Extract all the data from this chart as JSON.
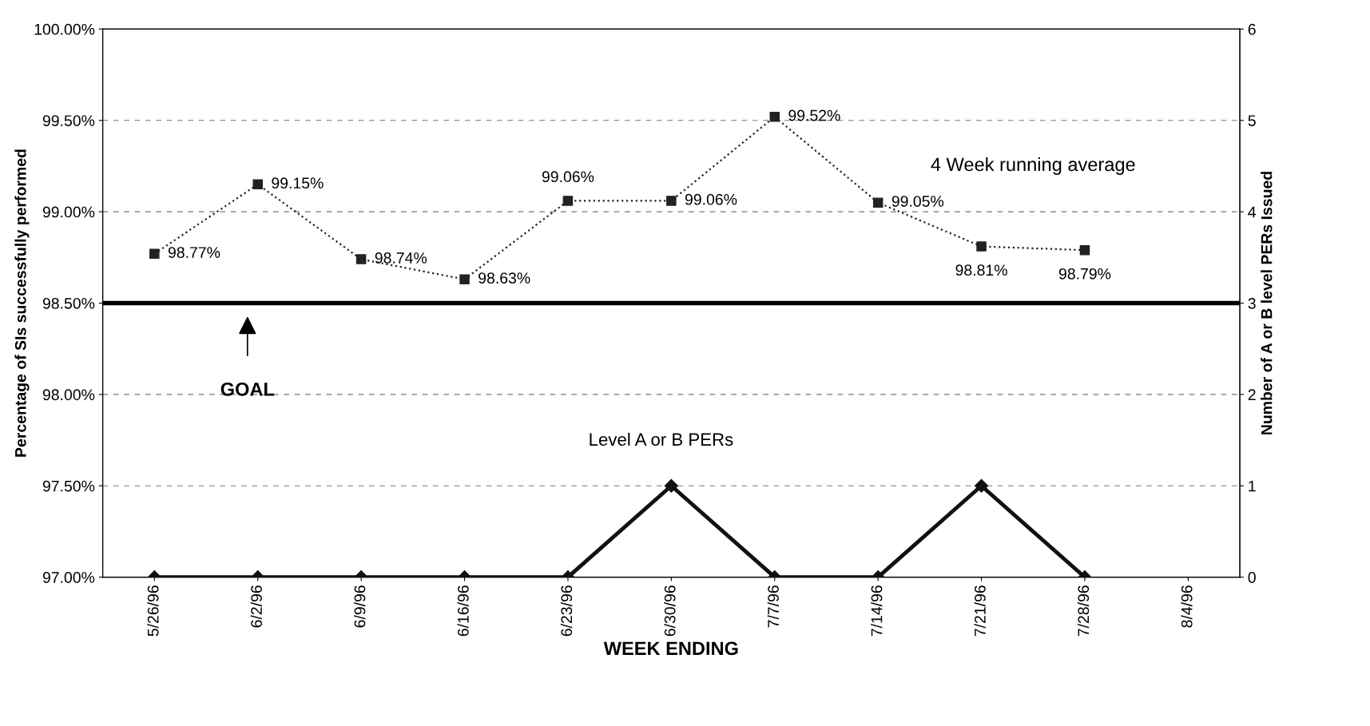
{
  "chart_data": {
    "type": "line",
    "xlabel": "WEEK ENDING",
    "ylabel": "Percentage of SIs successfully performed",
    "y2label": "Number of A or B level PERs Issued",
    "categories": [
      "5/26/96",
      "6/2/96",
      "6/9/96",
      "6/16/96",
      "6/23/96",
      "6/30/96",
      "7/7/96",
      "7/14/96",
      "7/21/96",
      "7/28/96",
      "8/4/96"
    ],
    "series": [
      {
        "name": "4 Week running average",
        "color": "#222222",
        "values": [
          98.77,
          99.15,
          98.74,
          98.63,
          99.06,
          99.06,
          99.52,
          99.05,
          98.81,
          98.79,
          null
        ],
        "value_labels": [
          "98.77%",
          "99.15%",
          "98.74%",
          "98.63%",
          "99.06%",
          "99.06%",
          "99.52%",
          "99.05%",
          "98.81%",
          "98.79%",
          null
        ],
        "marker": "square",
        "line_style": "dotted"
      },
      {
        "name": "Level A or B PERs",
        "color": "#111111",
        "axis": "y2",
        "values": [
          0,
          0,
          0,
          0,
          0,
          1,
          0,
          0,
          1,
          0,
          null
        ],
        "marker": "diamond",
        "line_style": "solid"
      }
    ],
    "ylim": [
      97,
      100
    ],
    "yticks": [
      {
        "value": 97,
        "label": "97.00%"
      },
      {
        "value": 97.5,
        "label": "97.50%"
      },
      {
        "value": 98,
        "label": "98.00%"
      },
      {
        "value": 98.5,
        "label": "98.50%"
      },
      {
        "value": 99,
        "label": "99.00%"
      },
      {
        "value": 99.5,
        "label": "99.50%"
      },
      {
        "value": 100,
        "label": "100.00%"
      }
    ],
    "y2lim": [
      0,
      6
    ],
    "y2ticks": [
      0,
      1,
      2,
      3,
      4,
      5,
      6
    ],
    "ref_lines": [
      {
        "axis": "y",
        "value": 98.5,
        "color": "#000000",
        "line_style": "solid"
      }
    ],
    "annotations": [
      "GOAL"
    ],
    "grid": "y",
    "legend": false
  }
}
